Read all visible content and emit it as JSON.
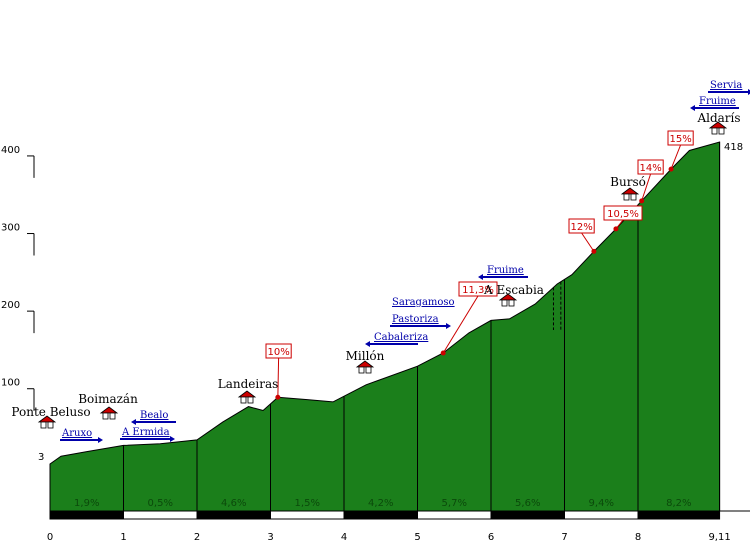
{
  "chart_data": {
    "type": "area",
    "xlim": [
      0,
      9.11
    ],
    "ylim": [
      -75,
      520
    ],
    "x_ticks": [
      "0",
      "1",
      "2",
      "3",
      "4",
      "5",
      "6",
      "7",
      "8",
      "9,11"
    ],
    "y_ticks": [
      {
        "value": 400,
        "label": "400"
      },
      {
        "value": 300,
        "label": "300"
      },
      {
        "value": 200,
        "label": "200"
      },
      {
        "value": 100,
        "label": "100"
      }
    ],
    "start_altitude": "3",
    "end_altitude": "418",
    "profile": [
      {
        "x": 0,
        "y": 3
      },
      {
        "x": 0.15,
        "y": 13
      },
      {
        "x": 0.5,
        "y": 19
      },
      {
        "x": 1,
        "y": 27
      },
      {
        "x": 1.5,
        "y": 29
      },
      {
        "x": 2,
        "y": 34
      },
      {
        "x": 2.35,
        "y": 57
      },
      {
        "x": 2.7,
        "y": 77
      },
      {
        "x": 2.9,
        "y": 72
      },
      {
        "x": 3.1,
        "y": 89
      },
      {
        "x": 3.5,
        "y": 86
      },
      {
        "x": 3.85,
        "y": 83
      },
      {
        "x": 4.3,
        "y": 105
      },
      {
        "x": 5,
        "y": 129
      },
      {
        "x": 5.35,
        "y": 146
      },
      {
        "x": 5.7,
        "y": 172
      },
      {
        "x": 6,
        "y": 188
      },
      {
        "x": 6.25,
        "y": 190
      },
      {
        "x": 6.6,
        "y": 209
      },
      {
        "x": 6.9,
        "y": 235
      },
      {
        "x": 7.1,
        "y": 247
      },
      {
        "x": 7.4,
        "y": 277
      },
      {
        "x": 7.7,
        "y": 306
      },
      {
        "x": 8,
        "y": 337
      },
      {
        "x": 8.45,
        "y": 383
      },
      {
        "x": 8.7,
        "y": 407
      },
      {
        "x": 9.11,
        "y": 418
      }
    ],
    "segments": [
      {
        "from": 0,
        "to": 1,
        "grade": "1,9%"
      },
      {
        "from": 1,
        "to": 2,
        "grade": "0,5%"
      },
      {
        "from": 2,
        "to": 3,
        "grade": "4,6%"
      },
      {
        "from": 3,
        "to": 4,
        "grade": "1,5%"
      },
      {
        "from": 4,
        "to": 5,
        "grade": "4,2%"
      },
      {
        "from": 5,
        "to": 6,
        "grade": "5,7%"
      },
      {
        "from": 6,
        "to": 7,
        "grade": "5,6%"
      },
      {
        "from": 7,
        "to": 8,
        "grade": "9,4%"
      },
      {
        "from": 8,
        "to": 9.11,
        "grade": "8,2%"
      }
    ],
    "peak_grades": [
      {
        "x": 3.1,
        "label": "10%"
      },
      {
        "x": 5.35,
        "label": "11,3%"
      },
      {
        "x": 7.4,
        "label": "12%"
      },
      {
        "x": 7.7,
        "label": "10,5%"
      },
      {
        "x": 8.05,
        "label": "14%"
      },
      {
        "x": 8.45,
        "label": "15%"
      }
    ],
    "places": [
      {
        "x": 0,
        "name": "Ponte Beluso"
      },
      {
        "x": 0.8,
        "name": "Boimazán"
      },
      {
        "x": 2.65,
        "name": "Landeiras"
      },
      {
        "x": 4.3,
        "name": "Millón"
      },
      {
        "x": 6.2,
        "name": "A Escabia"
      },
      {
        "x": 7.95,
        "name": "Bursó"
      },
      {
        "x": 9.11,
        "name": "Aldarís"
      }
    ],
    "roads": [
      {
        "name": "Aruxo",
        "direction": "right"
      },
      {
        "name": "Bealo",
        "direction": "left"
      },
      {
        "name": "A Ermida",
        "direction": "right"
      },
      {
        "name": "Cabaleriza",
        "direction": "left"
      },
      {
        "name": "Saragamoso",
        "direction": "none"
      },
      {
        "name": "Pastoriza",
        "direction": "right"
      },
      {
        "name": "Fruime",
        "direction": "left"
      },
      {
        "name": "Servia",
        "direction": "right"
      },
      {
        "name": "Fruime",
        "direction": "left"
      }
    ],
    "colors": {
      "fill": "#1b7f1b",
      "outline": "#000000",
      "grade_box": "#cc0000",
      "road": "#0000aa",
      "scale_dark": "#000000",
      "scale_light": "#ffffff"
    }
  }
}
